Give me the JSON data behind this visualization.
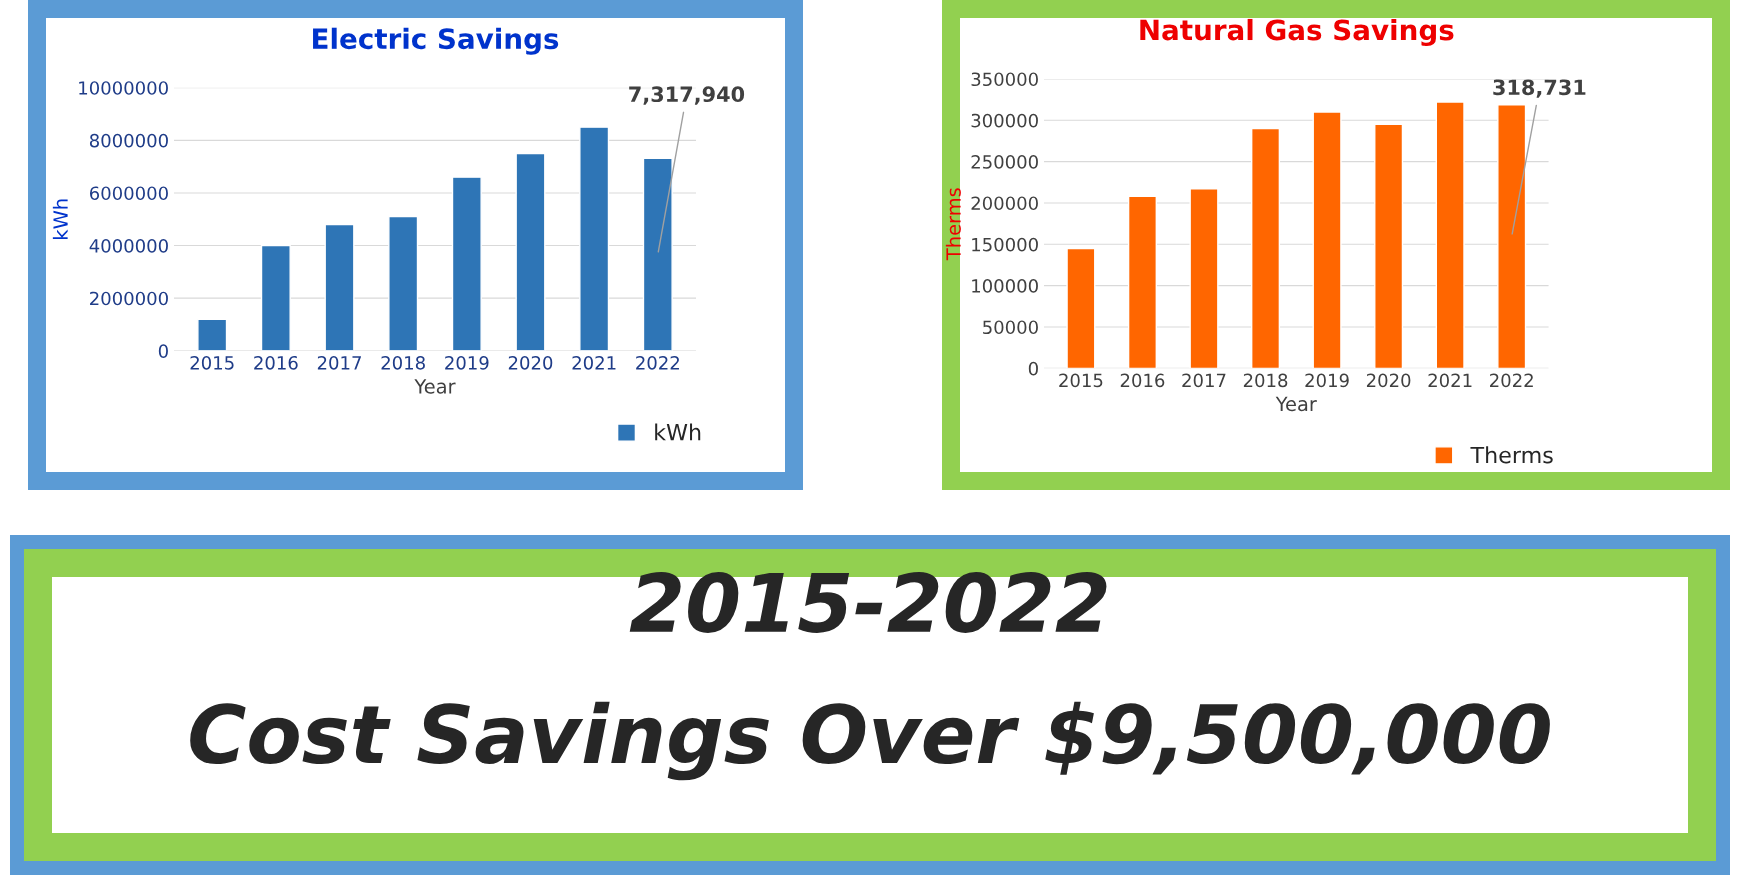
{
  "chart_data": [
    {
      "type": "bar",
      "title": "Electric Savings",
      "xlabel": "Year",
      "ylabel": "kWh",
      "categories": [
        "2015",
        "2016",
        "2017",
        "2018",
        "2019",
        "2020",
        "2021",
        "2022"
      ],
      "series": [
        {
          "name": "kWh",
          "color": "#2e75b6",
          "values": [
            1200000,
            4000000,
            4800000,
            5100000,
            6600000,
            7500000,
            8500000,
            7317940
          ],
          "value_labels": [
            null,
            null,
            null,
            null,
            null,
            null,
            null,
            "7,317,940"
          ]
        }
      ],
      "ylim": [
        0,
        10000000
      ],
      "yticks": [
        0,
        2000000,
        4000000,
        6000000,
        8000000,
        10000000
      ],
      "grid": "y",
      "legend": "bottom right"
    },
    {
      "type": "bar",
      "title": "Natural Gas Savings",
      "xlabel": "Year",
      "ylabel": "Therms",
      "categories": [
        "2015",
        "2016",
        "2017",
        "2018",
        "2019",
        "2020",
        "2021",
        "2022"
      ],
      "series": [
        {
          "name": "Therms",
          "color": "#ff6600",
          "values": [
            145000,
            208000,
            217000,
            290000,
            310000,
            295000,
            322000,
            318731
          ],
          "value_labels": [
            null,
            null,
            null,
            null,
            null,
            null,
            null,
            "318,731"
          ]
        }
      ],
      "ylim": [
        0,
        350000
      ],
      "yticks": [
        0,
        50000,
        100000,
        150000,
        200000,
        250000,
        300000,
        350000
      ],
      "grid": "y",
      "legend": "bottom right"
    },
    {
      "type": "other",
      "annotations": [
        "2015-2022",
        "Cost Savings Over $9,500,000"
      ]
    }
  ]
}
